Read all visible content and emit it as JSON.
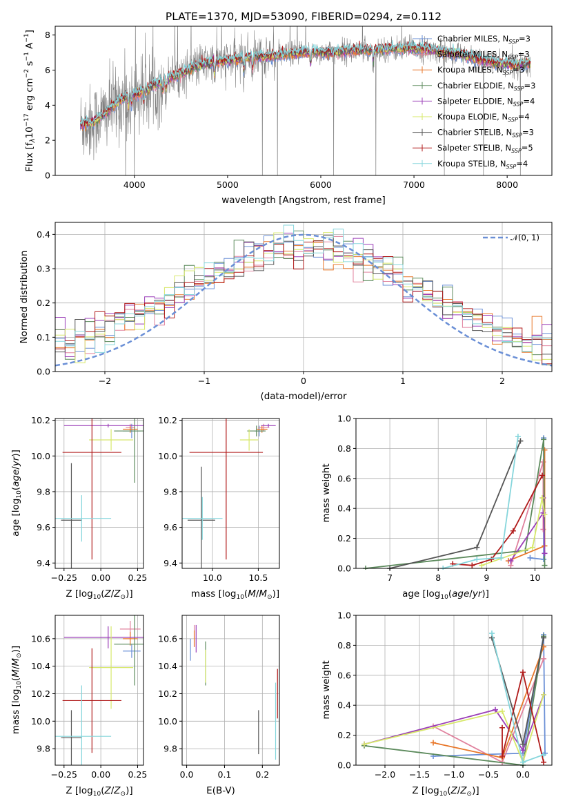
{
  "figure_title": "PLATE=1370, MJD=53090, FIBERID=0294, z=0.112",
  "legend_entries": [
    {
      "name": "Chabrier MILES, N_SSP=3",
      "pre": "Chabrier MILES, N",
      "sub": "SSP",
      "post": "=3",
      "color": "#6a8fd6"
    },
    {
      "name": "Salpeter MILES, N_SSP=3",
      "pre": "Salpeter MILES, N",
      "sub": "SSP",
      "post": "=3",
      "color": "#e0829e"
    },
    {
      "name": "Kroupa MILES, N_SSP=3",
      "pre": "Kroupa MILES, N",
      "sub": "SSP",
      "post": "=3",
      "color": "#e8772a"
    },
    {
      "name": "Chabrier ELODIE, N_SSP=3",
      "pre": "Chabrier ELODIE, N",
      "sub": "SSP",
      "post": "=3",
      "color": "#5c8a5c"
    },
    {
      "name": "Salpeter ELODIE, N_SSP=4",
      "pre": "Salpeter ELODIE, N",
      "sub": "SSP",
      "post": "=4",
      "color": "#9b3fb8"
    },
    {
      "name": "Kroupa ELODIE, N_SSP=4",
      "pre": "Kroupa ELODIE, N",
      "sub": "SSP",
      "post": "=4",
      "color": "#d7e86a"
    },
    {
      "name": "Chabrier STELIB, N_SSP=3",
      "pre": "Chabrier STELIB, N",
      "sub": "SSP",
      "post": "=3",
      "color": "#555555"
    },
    {
      "name": "Salpeter STELIB, N_SSP=5",
      "pre": "Salpeter STELIB, N",
      "sub": "SSP",
      "post": "=5",
      "color": "#b01a1a"
    },
    {
      "name": "Kroupa STELIB, N_SSP=4",
      "pre": "Kroupa STELIB, N",
      "sub": "SSP",
      "post": "=4",
      "color": "#86d6dc"
    }
  ],
  "chart_data": [
    {
      "id": "spectrum",
      "type": "line",
      "xlabel": "wavelength [Angstrom, rest frame]",
      "ylabel": "Flux [f_λ 10^-17 erg cm^-2 s^-1 A^-1]",
      "xlim": [
        3150,
        8480
      ],
      "ylim": [
        0,
        8.5
      ],
      "xticks": [
        4000,
        5000,
        6000,
        7000,
        8000
      ],
      "yticks": [
        0,
        2,
        4,
        6,
        8
      ],
      "grid": false,
      "legend_position": "right",
      "observed_spectrum_color": "#808080",
      "continuum_knots": {
        "x": [
          3420,
          3550,
          3700,
          3850,
          3950,
          4050,
          4200,
          4350,
          4500,
          4700,
          4900,
          5100,
          5300,
          5500,
          5700,
          5900,
          6100,
          6300,
          6500,
          6700,
          6900,
          7100,
          7300,
          7500,
          7700,
          7900,
          8100,
          8250
        ],
        "y": [
          2.9,
          3.0,
          3.6,
          4.3,
          4.6,
          4.7,
          5.1,
          5.5,
          5.8,
          6.3,
          6.5,
          6.6,
          6.8,
          6.8,
          6.95,
          7.05,
          7.0,
          7.1,
          7.15,
          7.2,
          7.25,
          7.2,
          7.05,
          6.9,
          6.6,
          6.4,
          6.3,
          6.4
        ]
      },
      "absorption_lines": [
        3934,
        3969,
        4102,
        4305,
        4340,
        4861,
        5175,
        5270,
        5890,
        6563
      ]
    },
    {
      "id": "residual-distribution",
      "type": "histogram",
      "xlabel": "(data-model)/error",
      "ylabel": "Normed distribution",
      "xlim": [
        -2.5,
        2.5
      ],
      "ylim": [
        0,
        0.435
      ],
      "xticks": [
        -2,
        -1,
        0,
        1,
        2
      ],
      "yticks": [
        0.0,
        0.1,
        0.2,
        0.3,
        0.4
      ],
      "grid": true,
      "bin_width": 0.1,
      "reference_curve": {
        "label": "𝒩(0, 1)",
        "mean": 0,
        "sigma": 1,
        "color": "#6a8fd6",
        "dashed": true
      },
      "legend_position": "top-right"
    },
    {
      "id": "age-vs-metallicity",
      "type": "errorbar",
      "xlabel": "Z [log₁₀(Z/Z⊙)]",
      "ylabel": "age  [log₁₀(age/yr)]",
      "xlim": [
        -0.31,
        0.29
      ],
      "ylim": [
        9.37,
        10.21
      ],
      "xticks": [
        -0.25,
        0.0,
        0.25
      ],
      "yticks": [
        9.4,
        9.6,
        9.8,
        10.0,
        10.2
      ],
      "grid": true,
      "points": [
        {
          "series": "Chabrier MILES",
          "x": 0.21,
          "y": 10.14,
          "xerr": 0.06,
          "yerr": 0.04
        },
        {
          "series": "Salpeter MILES",
          "x": 0.2,
          "y": 10.16,
          "xerr": 0.03,
          "yerr": 0.02
        },
        {
          "series": "Kroupa MILES",
          "x": 0.2,
          "y": 10.15,
          "xerr": 0.05,
          "yerr": 0.02
        },
        {
          "series": "Chabrier ELODIE",
          "x": 0.23,
          "y": 10.14,
          "xerr": 0.14,
          "yerr": 0.29
        },
        {
          "series": "Salpeter ELODIE",
          "x": 0.05,
          "y": 10.17,
          "xerr": 0.3,
          "yerr": 0.01
        },
        {
          "series": "Kroupa ELODIE",
          "x": 0.07,
          "y": 10.09,
          "xerr": 0.15,
          "yerr": 0.06
        },
        {
          "series": "Chabrier STELIB",
          "x": -0.2,
          "y": 9.64,
          "xerr": 0.07,
          "yerr": 0.32
        },
        {
          "series": "Salpeter STELIB",
          "x": -0.06,
          "y": 10.02,
          "xerr": 0.2,
          "yerr": 0.6
        },
        {
          "series": "Kroupa STELIB",
          "x": -0.13,
          "y": 9.65,
          "xerr": 0.2,
          "yerr": 0.13
        }
      ]
    },
    {
      "id": "age-vs-mass",
      "type": "errorbar",
      "xlabel": "mass [log₁₀(M/M⊙)]",
      "ylabel": "",
      "xlim": [
        9.67,
        10.73
      ],
      "ylim": [
        9.37,
        10.21
      ],
      "xticks": [
        10.0,
        10.5
      ],
      "yticks": [
        9.4,
        9.6,
        9.8,
        10.0,
        10.2
      ],
      "grid": true,
      "points": [
        {
          "series": "Chabrier MILES",
          "x": 10.51,
          "y": 10.14,
          "xerr": 0.05,
          "yerr": 0.03
        },
        {
          "series": "Salpeter MILES",
          "x": 10.56,
          "y": 10.16,
          "xerr": 0.06,
          "yerr": 0.02
        },
        {
          "series": "Kroupa MILES",
          "x": 10.54,
          "y": 10.15,
          "xerr": 0.06,
          "yerr": 0.02
        },
        {
          "series": "Chabrier ELODIE",
          "x": 10.48,
          "y": 10.14,
          "xerr": 0.1,
          "yerr": 0.03
        },
        {
          "series": "Salpeter ELODIE",
          "x": 10.61,
          "y": 10.17,
          "xerr": 0.08,
          "yerr": 0.01
        },
        {
          "series": "Kroupa ELODIE",
          "x": 10.4,
          "y": 10.09,
          "xerr": 0.1,
          "yerr": 0.06
        },
        {
          "series": "Chabrier STELIB",
          "x": 9.88,
          "y": 9.64,
          "xerr": 0.15,
          "yerr": 0.3
        },
        {
          "series": "Salpeter STELIB",
          "x": 10.15,
          "y": 10.02,
          "xerr": 0.4,
          "yerr": 0.6
        },
        {
          "series": "Kroupa STELIB",
          "x": 9.89,
          "y": 9.65,
          "xerr": 0.22,
          "yerr": 0.12
        }
      ]
    },
    {
      "id": "mass-weight-vs-age",
      "type": "line",
      "xlabel": "age  [log₁₀(age/yr)]",
      "ylabel": "mass weight",
      "xlim": [
        6.3,
        10.35
      ],
      "ylim": [
        0.0,
        1.0
      ],
      "xticks": [
        7,
        8,
        9,
        10
      ],
      "yticks": [
        0.0,
        0.2,
        0.4,
        0.6,
        0.8,
        1.0
      ],
      "grid": true,
      "series": [
        {
          "name": "Chabrier MILES",
          "x": [
            9.9,
            10.18,
            10.18
          ],
          "y": [
            0.07,
            0.06,
            0.87
          ]
        },
        {
          "name": "Salpeter MILES",
          "x": [
            9.5,
            10.17,
            10.17
          ],
          "y": [
            0.02,
            0.71,
            0.26
          ]
        },
        {
          "name": "Kroupa MILES",
          "x": [
            9.45,
            10.2,
            10.2
          ],
          "y": [
            0.05,
            0.15,
            0.79
          ]
        },
        {
          "name": "Chabrier ELODIE",
          "x": [
            6.5,
            9.8,
            10.18,
            10.2
          ],
          "y": [
            0.0,
            0.12,
            0.86,
            0.02
          ]
        },
        {
          "name": "Salpeter ELODIE",
          "x": [
            9.5,
            10.17,
            10.17,
            10.2
          ],
          "y": [
            0.05,
            0.37,
            0.47,
            0.1
          ]
        },
        {
          "name": "Kroupa ELODIE",
          "x": [
            8.9,
            9.95,
            10.15,
            10.2
          ],
          "y": [
            0.02,
            0.14,
            0.47,
            0.36
          ]
        },
        {
          "name": "Chabrier STELIB",
          "x": [
            7.0,
            8.8,
            9.7
          ],
          "y": [
            0.0,
            0.14,
            0.85
          ]
        },
        {
          "name": "Salpeter STELIB",
          "x": [
            8.3,
            8.7,
            9.1,
            9.55,
            10.15
          ],
          "y": [
            0.03,
            0.02,
            0.06,
            0.25,
            0.62
          ]
        },
        {
          "name": "Kroupa STELIB",
          "x": [
            8.1,
            8.8,
            9.3,
            9.65
          ],
          "y": [
            0.0,
            0.06,
            0.07,
            0.88
          ]
        }
      ]
    },
    {
      "id": "mass-vs-metallicity",
      "type": "errorbar",
      "xlabel": "Z [log₁₀(Z/Z⊙)]",
      "ylabel": "mass [log₁₀(M/M⊙)]",
      "xlim": [
        -0.31,
        0.29
      ],
      "ylim": [
        9.68,
        10.77
      ],
      "xticks": [
        -0.25,
        0.0,
        0.25
      ],
      "yticks": [
        9.8,
        10.0,
        10.2,
        10.4,
        10.6
      ],
      "grid": true,
      "points": [
        {
          "series": "Chabrier MILES",
          "x": 0.21,
          "y": 10.51,
          "xerr": 0.06,
          "yerr": 0.05
        },
        {
          "series": "Salpeter MILES",
          "x": 0.2,
          "y": 10.67,
          "xerr": 0.07,
          "yerr": 0.06
        },
        {
          "series": "Kroupa MILES",
          "x": 0.2,
          "y": 10.6,
          "xerr": 0.05,
          "yerr": 0.05
        },
        {
          "series": "Chabrier ELODIE",
          "x": 0.23,
          "y": 10.56,
          "xerr": 0.14,
          "yerr": 0.3
        },
        {
          "series": "Salpeter ELODIE",
          "x": 0.05,
          "y": 10.61,
          "xerr": 0.3,
          "yerr": 0.08
        },
        {
          "series": "Kroupa ELODIE",
          "x": 0.07,
          "y": 10.39,
          "xerr": 0.15,
          "yerr": 0.3
        },
        {
          "series": "Chabrier STELIB",
          "x": -0.2,
          "y": 9.88,
          "xerr": 0.07,
          "yerr": 0.2
        },
        {
          "series": "Salpeter STELIB",
          "x": -0.06,
          "y": 10.15,
          "xerr": 0.2,
          "yerr": 0.38
        },
        {
          "series": "Kroupa STELIB",
          "x": -0.13,
          "y": 9.89,
          "xerr": 0.2,
          "yerr": 0.37
        }
      ]
    },
    {
      "id": "mass-vs-extinction",
      "type": "errorbar",
      "xlabel": "E(B-V)",
      "ylabel": "",
      "xlim": [
        -0.012,
        0.245
      ],
      "ylim": [
        9.68,
        10.77
      ],
      "xticks": [
        0.0,
        0.1,
        0.2
      ],
      "yticks": [
        9.8,
        10.0,
        10.2,
        10.4,
        10.6
      ],
      "grid": true,
      "points": [
        {
          "series": "Chabrier MILES",
          "x": 0.01,
          "y": 10.52,
          "xerr": 0,
          "yerr": 0.08
        },
        {
          "series": "Salpeter MILES",
          "x": 0.02,
          "y": 10.62,
          "xerr": 0,
          "yerr": 0.08
        },
        {
          "series": "Kroupa MILES",
          "x": 0.02,
          "y": 10.6,
          "xerr": 0,
          "yerr": 0.06
        },
        {
          "series": "Chabrier ELODIE",
          "x": 0.05,
          "y": 10.42,
          "xerr": 0,
          "yerr": 0.16
        },
        {
          "series": "Salpeter ELODIE",
          "x": 0.025,
          "y": 10.6,
          "xerr": 0,
          "yerr": 0.1
        },
        {
          "series": "Kroupa ELODIE",
          "x": 0.05,
          "y": 10.4,
          "xerr": 0,
          "yerr": 0.12
        },
        {
          "series": "Chabrier STELIB",
          "x": 0.19,
          "y": 9.92,
          "xerr": 0,
          "yerr": 0.16
        },
        {
          "series": "Salpeter STELIB",
          "x": 0.24,
          "y": 10.2,
          "xerr": 0,
          "yerr": 0.18
        },
        {
          "series": "Kroupa STELIB",
          "x": 0.235,
          "y": 10.0,
          "xerr": 0,
          "yerr": 0.28
        }
      ]
    },
    {
      "id": "mass-weight-vs-metallicity",
      "type": "line",
      "xlabel": "Z [log₁₀(Z/Z⊙)]",
      "ylabel": "mass weight",
      "xlim": [
        -2.42,
        0.42
      ],
      "ylim": [
        0.0,
        1.0
      ],
      "xticks": [
        -2.0,
        -1.5,
        -1.0,
        -0.5,
        0.0
      ],
      "yticks": [
        0.0,
        0.2,
        0.4,
        0.6,
        0.8,
        1.0
      ],
      "grid": true,
      "series": [
        {
          "name": "Chabrier MILES",
          "x": [
            -1.3,
            0.0,
            0.3,
            0.32
          ],
          "y": [
            0.06,
            0.08,
            0.87,
            0.08
          ]
        },
        {
          "name": "Salpeter MILES",
          "x": [
            -1.3,
            -0.3,
            0.3
          ],
          "y": [
            0.26,
            0.02,
            0.71
          ]
        },
        {
          "name": "Kroupa MILES",
          "x": [
            -1.3,
            -0.3,
            0.3
          ],
          "y": [
            0.15,
            0.05,
            0.79
          ]
        },
        {
          "name": "Chabrier ELODIE",
          "x": [
            -2.3,
            0.0,
            0.3
          ],
          "y": [
            0.13,
            0.0,
            0.86
          ]
        },
        {
          "name": "Salpeter ELODIE",
          "x": [
            -2.3,
            -0.4,
            0.0,
            0.3
          ],
          "y": [
            0.14,
            0.37,
            0.1,
            0.47
          ]
        },
        {
          "name": "Kroupa ELODIE",
          "x": [
            -2.3,
            -0.3,
            0.0,
            0.3
          ],
          "y": [
            0.14,
            0.36,
            0.02,
            0.47
          ]
        },
        {
          "name": "Chabrier STELIB",
          "x": [
            -0.45,
            0.0,
            0.3
          ],
          "y": [
            0.85,
            0.14,
            0.85
          ]
        },
        {
          "name": "Salpeter STELIB",
          "x": [
            -0.3,
            -0.3,
            0.0,
            0.3
          ],
          "y": [
            0.25,
            0.06,
            0.62,
            0.02
          ]
        },
        {
          "name": "Kroupa STELIB",
          "x": [
            -0.45,
            0.0,
            0.3
          ],
          "y": [
            0.88,
            0.02,
            0.07
          ]
        }
      ]
    }
  ]
}
